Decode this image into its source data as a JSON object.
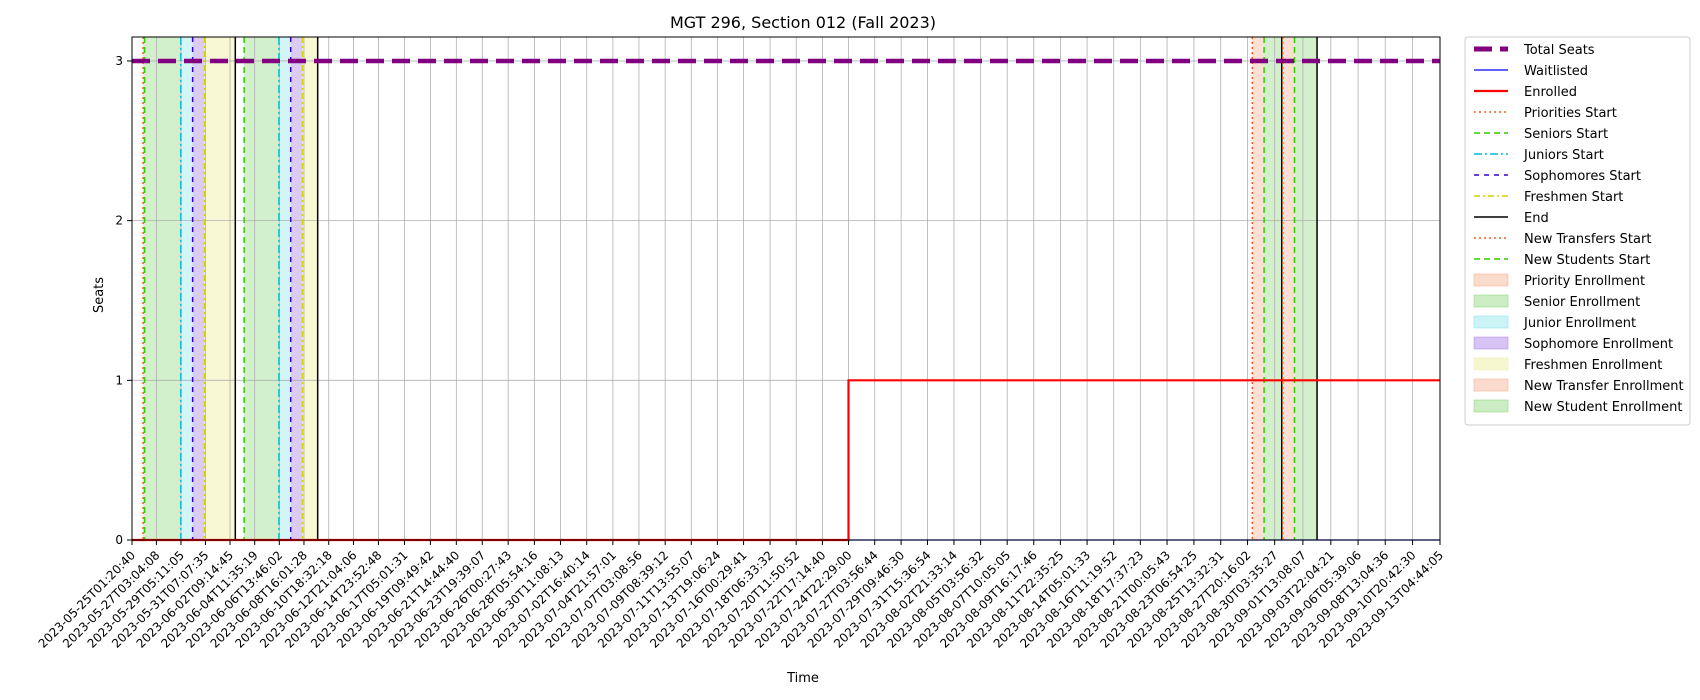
{
  "chart_data": {
    "type": "line",
    "title": "MGT 296, Section 012 (Fall 2023)",
    "xlabel": "Time",
    "ylabel": "Seats",
    "ylim": [
      0,
      3.15
    ],
    "yticks": [
      0,
      1,
      2,
      3
    ],
    "grid": true,
    "legend_position": "outside-right-top",
    "xlim": [
      "2023-05-25T01:20:40",
      "2023-09-13T04:44:05"
    ],
    "x_tick_labels": [
      "2023-05-25T01:20:40",
      "2023-05-27T03:04:08",
      "2023-05-29T05:11:05",
      "2023-05-31T07:07:35",
      "2023-06-02T09:14:45",
      "2023-06-04T11:35:19",
      "2023-06-06T13:46:02",
      "2023-06-08T16:01:28",
      "2023-06-10T18:32:18",
      "2023-06-12T21:04:06",
      "2023-06-14T23:52:48",
      "2023-06-17T05:01:31",
      "2023-06-19T09:49:42",
      "2023-06-21T14:44:40",
      "2023-06-23T19:39:07",
      "2023-06-26T00:27:43",
      "2023-06-28T05:54:16",
      "2023-06-30T11:08:13",
      "2023-07-02T16:40:14",
      "2023-07-04T21:57:01",
      "2023-07-07T03:08:56",
      "2023-07-09T08:39:12",
      "2023-07-11T13:55:07",
      "2023-07-13T19:06:24",
      "2023-07-16T00:29:41",
      "2023-07-18T06:33:32",
      "2023-07-20T11:50:52",
      "2023-07-22T17:14:40",
      "2023-07-24T22:29:00",
      "2023-07-27T03:56:44",
      "2023-07-29T09:46:30",
      "2023-07-31T15:36:54",
      "2023-08-02T21:33:14",
      "2023-08-05T03:56:32",
      "2023-08-07T10:05:05",
      "2023-08-09T16:17:46",
      "2023-08-11T22:35:25",
      "2023-08-14T05:01:33",
      "2023-08-16T11:19:52",
      "2023-08-18T17:37:23",
      "2023-08-21T00:05:43",
      "2023-08-23T06:54:25",
      "2023-08-25T13:32:31",
      "2023-08-27T20:16:02",
      "2023-08-30T03:35:27",
      "2023-09-01T13:08:07",
      "2023-09-03T22:04:21",
      "2023-09-06T05:39:06",
      "2023-09-08T13:04:36",
      "2023-09-10T20:42:30",
      "2023-09-13T04:44:05"
    ],
    "series": [
      {
        "name": "Total Seats",
        "color": "#800080",
        "style": "dashed-thick",
        "x": [
          "2023-05-25T01:20:40",
          "2023-09-13T04:44:05"
        ],
        "y": [
          3,
          3
        ]
      },
      {
        "name": "Waitlisted",
        "color": "#0000ff",
        "style": "solid",
        "x": [
          "2023-05-25T01:20:40",
          "2023-09-13T04:44:05"
        ],
        "y": [
          0,
          0
        ]
      },
      {
        "name": "Enrolled",
        "color": "#ff0000",
        "style": "step",
        "x": [
          "2023-05-25T01:20:40",
          "2023-07-24T22:29:00",
          "2023-09-13T04:44:05"
        ],
        "y": [
          0,
          1,
          1
        ]
      }
    ],
    "phase_lines": [
      {
        "name": "Priorities Start",
        "color": "#ff5a1f",
        "dash": "2,3",
        "dates": [
          "2023-05-26T00:00:00",
          "2023-08-28T06:00:00"
        ]
      },
      {
        "name": "Seniors Start",
        "color": "#33cc00",
        "dash": "6,4",
        "dates": [
          "2023-05-26T03:00:00",
          "2023-06-03T14:00:00",
          "2023-08-29T06:00:00"
        ]
      },
      {
        "name": "Juniors Start",
        "color": "#00bcd4",
        "dash": "8,3,2,3",
        "dates": [
          "2023-05-29T05:00:00",
          "2023-06-06T13:00:00"
        ]
      },
      {
        "name": "Sophomores Start",
        "color": "#3300cc",
        "dash": "5,5",
        "dates": [
          "2023-05-30T05:00:00",
          "2023-06-07T13:00:00"
        ]
      },
      {
        "name": "Freshmen Start",
        "color": "#d4d400",
        "dash": "6,3,2,3",
        "dates": [
          "2023-05-31T05:00:00",
          "2023-06-08T13:00:00"
        ]
      },
      {
        "name": "End",
        "color": "#000000",
        "dash": "",
        "dates": [
          "2023-06-02T20:00:00",
          "2023-06-09T20:00:00",
          "2023-08-30T18:00:00",
          "2023-09-02T18:00:00"
        ]
      },
      {
        "name": "New Transfers Start",
        "color": "#ff5a1f",
        "dash": "2,3",
        "dates": [
          "2023-08-30T20:00:00"
        ]
      },
      {
        "name": "New Students Start",
        "color": "#33cc00",
        "dash": "6,4",
        "dates": [
          "2023-08-31T20:00:00"
        ]
      }
    ],
    "phase_spans": [
      {
        "name": "Priority Enrollment",
        "color": "#f4a582",
        "opacity": 0.35,
        "ranges": [
          [
            "2023-05-26T00:00:00",
            "2023-05-26T03:00:00"
          ],
          [
            "2023-08-28T06:00:00",
            "2023-08-29T06:00:00"
          ]
        ]
      },
      {
        "name": "Senior Enrollment",
        "color": "#7fd36a",
        "opacity": 0.35,
        "ranges": [
          [
            "2023-05-26T03:00:00",
            "2023-05-29T05:00:00"
          ],
          [
            "2023-06-03T14:00:00",
            "2023-06-06T13:00:00"
          ],
          [
            "2023-08-29T06:00:00",
            "2023-08-30T18:00:00"
          ]
        ]
      },
      {
        "name": "Junior Enrollment",
        "color": "#7fe3ec",
        "opacity": 0.35,
        "ranges": [
          [
            "2023-05-29T05:00:00",
            "2023-05-30T05:00:00"
          ],
          [
            "2023-06-06T13:00:00",
            "2023-06-07T13:00:00"
          ]
        ]
      },
      {
        "name": "Sophomore Enrollment",
        "color": "#a67de6",
        "opacity": 0.4,
        "ranges": [
          [
            "2023-05-30T05:00:00",
            "2023-05-31T05:00:00"
          ],
          [
            "2023-06-07T13:00:00",
            "2023-06-08T13:00:00"
          ]
        ]
      },
      {
        "name": "Freshmen Enrollment",
        "color": "#f0f0a0",
        "opacity": 0.45,
        "ranges": [
          [
            "2023-05-31T05:00:00",
            "2023-06-02T20:00:00"
          ],
          [
            "2023-06-08T13:00:00",
            "2023-06-09T20:00:00"
          ]
        ]
      },
      {
        "name": "New Transfer Enrollment",
        "color": "#f4a582",
        "opacity": 0.35,
        "ranges": [
          [
            "2023-08-30T20:00:00",
            "2023-08-31T20:00:00"
          ]
        ]
      },
      {
        "name": "New Student Enrollment",
        "color": "#7fd36a",
        "opacity": 0.35,
        "ranges": [
          [
            "2023-08-31T20:00:00",
            "2023-09-02T18:00:00"
          ]
        ]
      }
    ]
  }
}
